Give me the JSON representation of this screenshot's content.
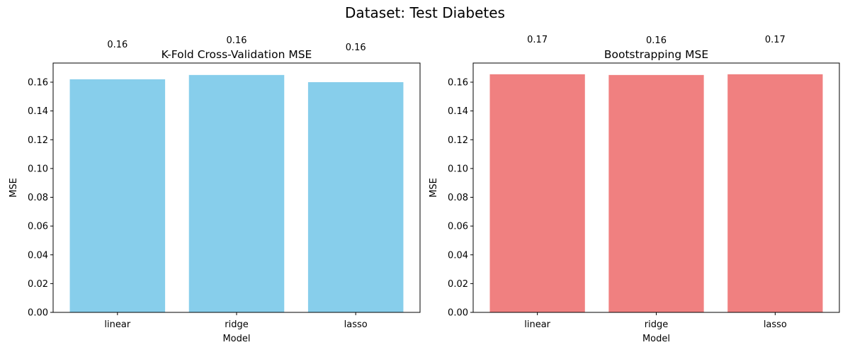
{
  "suptitle": "Dataset: Test Diabetes",
  "chart_data": [
    {
      "type": "bar",
      "title": "K-Fold Cross-Validation MSE",
      "xlabel": "Model",
      "ylabel": "MSE",
      "categories": [
        "linear",
        "ridge",
        "lasso"
      ],
      "values": [
        0.162,
        0.165,
        0.16
      ],
      "data_labels": [
        "0.16",
        "0.16",
        "0.16"
      ],
      "ylim": [
        0,
        0.1733
      ],
      "yticks": [
        0.0,
        0.02,
        0.04,
        0.06,
        0.08,
        0.1,
        0.12,
        0.14,
        0.16
      ],
      "ytick_labels": [
        "0.00",
        "0.02",
        "0.04",
        "0.06",
        "0.08",
        "0.10",
        "0.12",
        "0.14",
        "0.16"
      ],
      "color": "#87ceeb",
      "grid": false
    },
    {
      "type": "bar",
      "title": "Bootstrapping MSE",
      "xlabel": "Model",
      "ylabel": "MSE",
      "categories": [
        "linear",
        "ridge",
        "lasso"
      ],
      "values": [
        0.1655,
        0.165,
        0.1655
      ],
      "data_labels": [
        "0.17",
        "0.16",
        "0.17"
      ],
      "ylim": [
        0,
        0.1733
      ],
      "yticks": [
        0.0,
        0.02,
        0.04,
        0.06,
        0.08,
        0.1,
        0.12,
        0.14,
        0.16
      ],
      "ytick_labels": [
        "0.00",
        "0.02",
        "0.04",
        "0.06",
        "0.08",
        "0.10",
        "0.12",
        "0.14",
        "0.16"
      ],
      "color": "#f08080",
      "grid": false
    }
  ]
}
